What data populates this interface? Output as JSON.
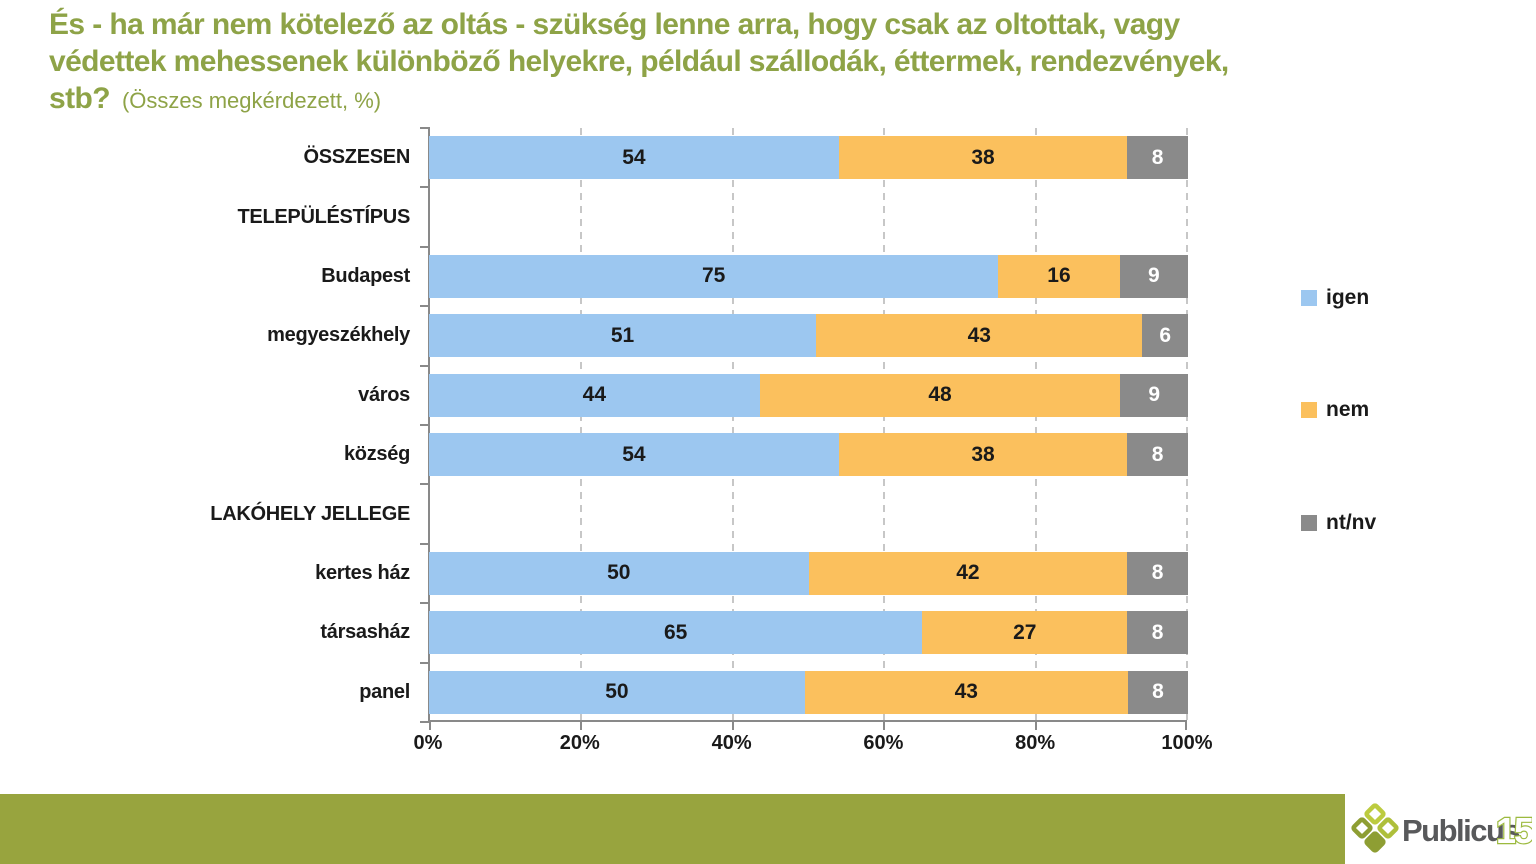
{
  "title": {
    "line1": "És - ha már nem kötelező az oltás - szükség lenne arra, hogy csak az oltottak, vagy",
    "line2": "védettek mehessenek különböző helyekre, például szállodák, éttermek, rendezvények,",
    "line3": "stb?",
    "note": "(Összes megkérdezett, %)",
    "color": "#8EA347"
  },
  "chart_data": {
    "type": "bar",
    "variant": "horizontal-stacked",
    "series_names": [
      "igen",
      "nem",
      "nt/nv"
    ],
    "series_colors": [
      "#9CC7F0",
      "#FBC05D",
      "#8A8A8A"
    ],
    "value_label_colors": [
      "#1a1a1a",
      "#1a1a1a",
      "#ffffff"
    ],
    "categories": [
      "ÖSSZESEN",
      "TELEPÜLÉSTÍPUS",
      "Budapest",
      "megyeszékhely",
      "város",
      "község",
      "LAKÓHELY JELLEGE",
      "kertes ház",
      "társasház",
      "panel"
    ],
    "rows": [
      {
        "label": "ÖSSZESEN",
        "header": false,
        "values": [
          54,
          38,
          8
        ]
      },
      {
        "label": "TELEPÜLÉSTÍPUS",
        "header": true,
        "values": null
      },
      {
        "label": "Budapest",
        "header": false,
        "values": [
          75,
          16,
          9
        ]
      },
      {
        "label": "megyeszékhely",
        "header": false,
        "values": [
          51,
          43,
          6
        ]
      },
      {
        "label": "város",
        "header": false,
        "values": [
          44,
          48,
          9
        ]
      },
      {
        "label": "község",
        "header": false,
        "values": [
          54,
          38,
          8
        ]
      },
      {
        "label": "LAKÓHELY JELLEGE",
        "header": true,
        "values": null
      },
      {
        "label": "kertes ház",
        "header": false,
        "values": [
          50,
          42,
          8
        ]
      },
      {
        "label": "társasház",
        "header": false,
        "values": [
          65,
          27,
          8
        ]
      },
      {
        "label": "panel",
        "header": false,
        "values": [
          50,
          43,
          8
        ]
      }
    ],
    "xlim": [
      0,
      100
    ],
    "x_ticks": [
      "0%",
      "20%",
      "40%",
      "60%",
      "80%",
      "100%"
    ],
    "grid": "vertical-dashed",
    "legend_position": "right",
    "legend": [
      {
        "label": "igen",
        "color": "#9CC7F0"
      },
      {
        "label": "nem",
        "color": "#FBC05D"
      },
      {
        "label": "nt/nv",
        "color": "#8A8A8A"
      }
    ]
  },
  "footer": {
    "bar_color": "#98A43E",
    "brand": "Publicus",
    "brand_suffix": "15"
  }
}
